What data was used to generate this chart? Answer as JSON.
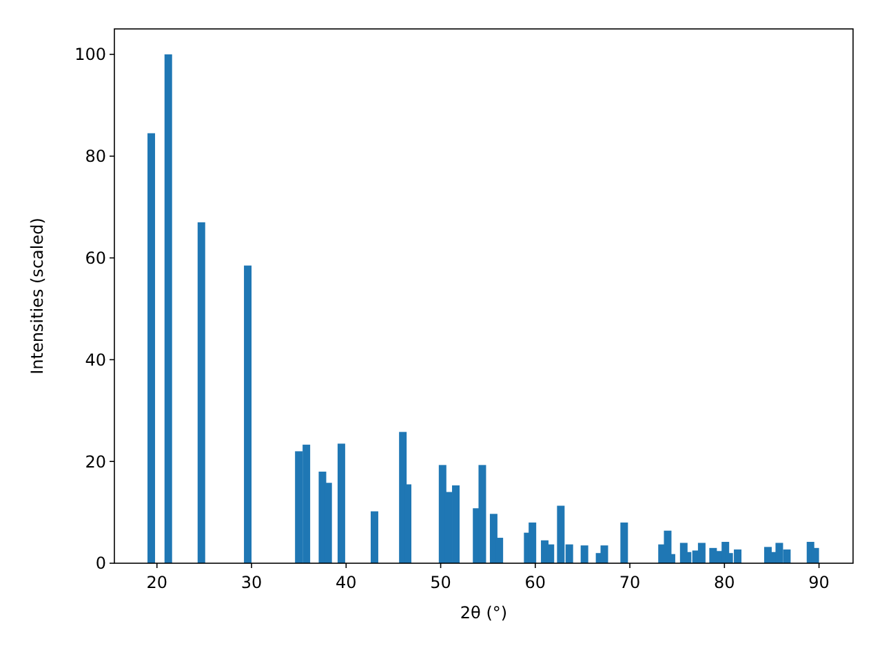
{
  "chart_data": {
    "type": "bar",
    "xlabel": "2θ (°)",
    "ylabel": "Intensities (scaled)",
    "x": [
      19.4,
      21.2,
      24.7,
      29.6,
      35.0,
      35.8,
      37.5,
      38.1,
      39.5,
      43.0,
      46.0,
      46.5,
      50.2,
      50.8,
      51.6,
      53.8,
      54.4,
      55.6,
      56.2,
      59.2,
      59.7,
      61.0,
      61.6,
      62.7,
      63.6,
      65.2,
      66.8,
      67.3,
      69.4,
      73.4,
      74.0,
      74.4,
      75.7,
      76.1,
      77.0,
      77.6,
      78.8,
      79.4,
      80.1,
      80.5,
      81.4,
      84.6,
      85.2,
      85.8,
      86.6,
      89.1,
      89.6
    ],
    "values": [
      84.5,
      100,
      67,
      58.5,
      22,
      23.3,
      18,
      15.8,
      23.5,
      10.2,
      25.8,
      15.5,
      19.3,
      14,
      15.3,
      10.8,
      19.3,
      9.7,
      5,
      6,
      8,
      4.5,
      3.7,
      11.3,
      3.7,
      3.5,
      2,
      3.5,
      8,
      3.7,
      6.4,
      1.8,
      4,
      2.2,
      2.5,
      4,
      3,
      2.4,
      4.2,
      2,
      2.7,
      3.2,
      2.2,
      4,
      2.7,
      4.2,
      3
    ],
    "color": "#1f77b4",
    "xlim": [
      15.5,
      93.6
    ],
    "xticks": [
      20,
      30,
      40,
      50,
      60,
      70,
      80,
      90
    ],
    "ylim": [
      0,
      105
    ],
    "yticks": [
      0,
      20,
      40,
      60,
      80,
      100
    ],
    "grid": false
  }
}
